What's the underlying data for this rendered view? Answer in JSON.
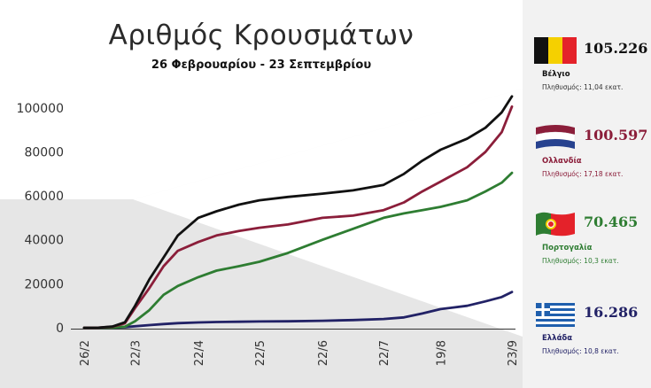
{
  "title": "Αριθμός Κρουσμάτων",
  "subtitle": "26 Φεβρουαρίου - 23 Σεπτεμβρίου",
  "countries": [
    {
      "name": "Βέλγιο",
      "value": "105.226",
      "population": "Πληθυσμός: 11,04 εκατ.",
      "color": "#111111",
      "flag": "belgium"
    },
    {
      "name": "Ολλανδία",
      "value": "100.597",
      "population": "Πληθυσμός: 17,18 εκατ.",
      "color": "#8b1e3a",
      "flag": "netherlands"
    },
    {
      "name": "Πορτογαλία",
      "value": "70.465",
      "population": "Πληθυσμός: 10,3 εκατ.",
      "color": "#2e7d32",
      "flag": "portugal"
    },
    {
      "name": "Ελλάδα",
      "value": "16.286",
      "population": "Πληθυσμός: 10,8 εκατ.",
      "color": "#222266",
      "flag": "greece"
    }
  ],
  "chart_data": {
    "type": "line",
    "title": "Αριθμός Κρουσμάτων",
    "subtitle": "26 Φεβρουαρίου - 23 Σεπτεμβρίου",
    "xlabel": "",
    "ylabel": "",
    "ylim": [
      0,
      110000
    ],
    "yticks": [
      0,
      20000,
      40000,
      60000,
      80000,
      100000
    ],
    "xticks": [
      "26/2",
      "22/3",
      "22/4",
      "22/5",
      "22/6",
      "22/7",
      "19/8",
      "23/9"
    ],
    "grid": false,
    "legend": "right",
    "series": [
      {
        "name": "Βέλγιο",
        "color": "#111111",
        "points": [
          [
            "26/2",
            0
          ],
          [
            "4/3",
            50
          ],
          [
            "11/3",
            600
          ],
          [
            "17/3",
            2500
          ],
          [
            "22/3",
            10000
          ],
          [
            "29/3",
            22000
          ],
          [
            "5/4",
            32000
          ],
          [
            "12/4",
            42000
          ],
          [
            "22/4",
            50000
          ],
          [
            "1/5",
            53000
          ],
          [
            "12/5",
            56000
          ],
          [
            "22/5",
            58000
          ],
          [
            "5/6",
            59500
          ],
          [
            "22/6",
            61000
          ],
          [
            "7/7",
            62500
          ],
          [
            "22/7",
            65000
          ],
          [
            "1/8",
            70000
          ],
          [
            "10/8",
            76000
          ],
          [
            "19/8",
            81000
          ],
          [
            "1/9",
            86000
          ],
          [
            "10/9",
            91000
          ],
          [
            "18/9",
            98000
          ],
          [
            "23/9",
            105226
          ]
        ]
      },
      {
        "name": "Ολλανδία",
        "color": "#8b1e3a",
        "points": [
          [
            "26/2",
            0
          ],
          [
            "4/3",
            50
          ],
          [
            "11/3",
            500
          ],
          [
            "17/3",
            2000
          ],
          [
            "22/3",
            9000
          ],
          [
            "29/3",
            18000
          ],
          [
            "5/4",
            28000
          ],
          [
            "12/4",
            35000
          ],
          [
            "22/4",
            39000
          ],
          [
            "1/5",
            42000
          ],
          [
            "12/5",
            44000
          ],
          [
            "22/5",
            45500
          ],
          [
            "5/6",
            47000
          ],
          [
            "22/6",
            50000
          ],
          [
            "7/7",
            51000
          ],
          [
            "22/7",
            53500
          ],
          [
            "1/8",
            57000
          ],
          [
            "10/8",
            62000
          ],
          [
            "19/8",
            66500
          ],
          [
            "1/9",
            73000
          ],
          [
            "10/9",
            80000
          ],
          [
            "18/9",
            89000
          ],
          [
            "23/9",
            100597
          ]
        ]
      },
      {
        "name": "Πορτογαλία",
        "color": "#2e7d32",
        "points": [
          [
            "26/2",
            0
          ],
          [
            "4/3",
            0
          ],
          [
            "11/3",
            100
          ],
          [
            "17/3",
            500
          ],
          [
            "22/3",
            3000
          ],
          [
            "29/3",
            8000
          ],
          [
            "5/4",
            15000
          ],
          [
            "12/4",
            19000
          ],
          [
            "22/4",
            23000
          ],
          [
            "1/5",
            26000
          ],
          [
            "12/5",
            28000
          ],
          [
            "22/5",
            30000
          ],
          [
            "5/6",
            34000
          ],
          [
            "22/6",
            40000
          ],
          [
            "7/7",
            45000
          ],
          [
            "22/7",
            50000
          ],
          [
            "1/8",
            52000
          ],
          [
            "10/8",
            53500
          ],
          [
            "19/8",
            55000
          ],
          [
            "1/9",
            58000
          ],
          [
            "10/9",
            62000
          ],
          [
            "18/9",
            66000
          ],
          [
            "23/9",
            70465
          ]
        ]
      },
      {
        "name": "Ελλάδα",
        "color": "#222266",
        "points": [
          [
            "26/2",
            0
          ],
          [
            "4/3",
            0
          ],
          [
            "11/3",
            100
          ],
          [
            "17/3",
            300
          ],
          [
            "22/3",
            700
          ],
          [
            "29/3",
            1200
          ],
          [
            "5/4",
            1700
          ],
          [
            "12/4",
            2100
          ],
          [
            "22/4",
            2400
          ],
          [
            "1/5",
            2600
          ],
          [
            "12/5",
            2750
          ],
          [
            "22/5",
            2850
          ],
          [
            "5/6",
            2950
          ],
          [
            "22/6",
            3200
          ],
          [
            "7/7",
            3500
          ],
          [
            "22/7",
            4000
          ],
          [
            "1/8",
            4700
          ],
          [
            "10/8",
            6500
          ],
          [
            "19/8",
            8500
          ],
          [
            "1/9",
            10000
          ],
          [
            "10/9",
            12000
          ],
          [
            "18/9",
            14000
          ],
          [
            "23/9",
            16286
          ]
        ]
      }
    ]
  }
}
